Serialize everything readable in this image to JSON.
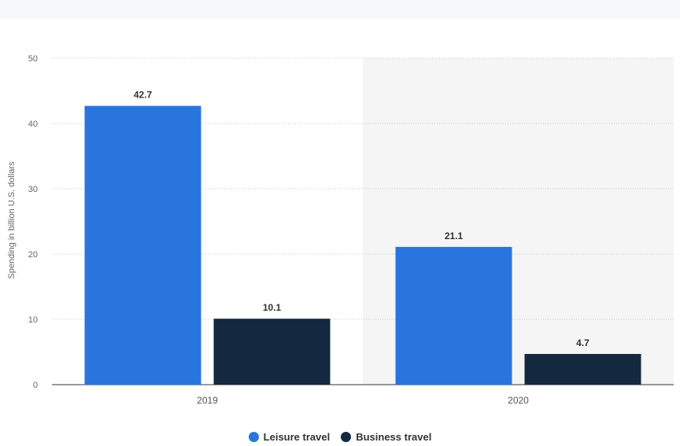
{
  "chart_data": {
    "type": "bar",
    "categories": [
      "2019",
      "2020"
    ],
    "series": [
      {
        "name": "Leisure travel",
        "values": [
          42.7,
          21.1
        ],
        "color": "#2876dd"
      },
      {
        "name": "Business travel",
        "values": [
          10.1,
          4.7
        ],
        "color": "#14283f"
      }
    ],
    "value_labels": [
      [
        "42.7",
        "21.1"
      ],
      [
        "10.1",
        "4.7"
      ]
    ],
    "y_ticks": [
      "0",
      "10",
      "20",
      "30",
      "40",
      "50"
    ],
    "ylim": [
      0,
      50
    ],
    "ylabel": "Spending in billion U.S. dollars",
    "xlabel": "",
    "title": "",
    "grid": true,
    "legend_position": "bottom-center",
    "highlight_category": "2020"
  }
}
